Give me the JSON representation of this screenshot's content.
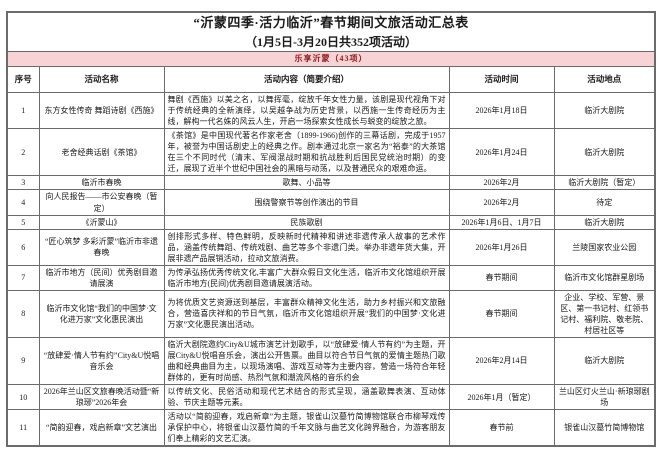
{
  "page": {
    "title_line1": "“沂蒙四季·活力临沂”春节期间文旅活动汇总表",
    "title_line2": "（1月5日-3月20日共352项活动）"
  },
  "section": {
    "label": "乐享沂蒙（43项）"
  },
  "colors": {
    "banner_bg": "#f8d3d5",
    "banner_text": "#8e1f22",
    "border": "#6b6b6b"
  },
  "table": {
    "headers": [
      "序号",
      "活动名称",
      "活动内容（简要介绍）",
      "活动时间",
      "活动地点"
    ],
    "rows": [
      {
        "no": "1",
        "name": "东方女性传奇 舞蹈诗剧《西施》",
        "content": "舞剧《西施》以美之名，以舞挥毫，绽放千年女性力量，该剧是现代视角下对于传统经典的全新演绎，以吴越争战为历史背景，以西施一生传奇经历为主线，解构一代名姝的风云人生，开启一场探索女性成长与蜕变的绽放之旅。",
        "time": "2026年1月18日",
        "place": "临沂大剧院"
      },
      {
        "no": "2",
        "name": "老舍经典话剧《茶馆》",
        "content": "《茶馆》是中国现代著名作家老舍（1899-1966)创作的三幕话剧，完成于1957年，被誉为中国话剧史上的经典之作。剧本通过北京一家名为“裕泰”的大茶馆在三个不同时代（清末、军阀混战时期和抗战胜利后国民党统治时期）的变迁，展现了近半个世纪中国社会的黑暗与动荡，以及普通民众的艰难命运。",
        "time": "2026年1月24日",
        "place": "临沂大剧院"
      },
      {
        "no": "3",
        "name": "临沂市春晚",
        "content": "歌舞、小品等",
        "time": "2026年2月",
        "place": "临沂大剧院（暂定）"
      },
      {
        "no": "4",
        "name": "向人民报告——市公安春晚（暂定）",
        "content": "围绕警察节等创作演出的节目",
        "time": "2026年2月",
        "place": "待定"
      },
      {
        "no": "5",
        "name": "《沂蒙山》",
        "content": "民族歌剧",
        "time": "2026年1月6日、1月7日",
        "place": "临沂大剧院"
      },
      {
        "no": "6",
        "name": "“匠心筑梦 多彩沂蒙”临沂市非遗春晚",
        "content": "创排形式多样、特色鲜明，反映新时代精神和讲述非遗传承人故事的艺术作品，涵盖传统舞蹈、传统戏剧、曲艺等多个非遗门类。举办非遗年货大集，开展非遗产品展销活动，拉动文旅消费。",
        "time": "2026年1月26日",
        "place": "兰陵国家农业公园"
      },
      {
        "no": "7",
        "name": "临沂市地方（民间）优秀剧目邀请展演",
        "content": "为传承弘扬优秀传统文化,丰富广大群众假日文化生活，临沂市文化馆组织开展临沂市地方(民间)优秀剧目邀请展演活动。",
        "time": "春节期间",
        "place": "临沂市文化馆群星剧场"
      },
      {
        "no": "8",
        "name": "临沂市文化馆“我们的中国梦·文化进万家”文化惠民演出",
        "content": "为将优质文艺资源送到基层，丰富群众精神文化生活，助力乡村振兴和文旅融合，营造喜庆祥和的节日气氛，临沂市文化馆组织开展“我们的中国梦·文化进万家”文化惠民演出活动。",
        "time": "春节期间",
        "place": "企业、学校、军营、景区、第一书记村、红领书记村、福利院、敬老院、村居社区等"
      },
      {
        "no": "9",
        "name": "“放肆爱·情人节有约”City&U悦唱音乐会",
        "content": "临沂大剧院邀约City&U城市演艺计划歌手，以“放肆爱·情人节有约”为主题，开展City&U悦唱音乐会，演出公开售票。曲目以符合节日气氛的爱情主题热门歌曲和经典曲目为主，以现场演唱、游戏互动等为主要内容，营造一场符合年轻群体的，更有时尚感、热烈气氛和潮流风格的音乐约会",
        "time": "2026年2月14日",
        "place": "临沂大剧院"
      },
      {
        "no": "10",
        "name": "2026年兰山区文旅春晚活动暨“新琅琊”2026年会",
        "content": "以传统文化、民俗活动和现代艺术结合的形式呈现，涵盖歌舞表演、互动体验、节庆主题等元素。",
        "time": "2026年1月（暂定）",
        "place": "兰山区灯火兰山·新琅琊剧场"
      },
      {
        "no": "11",
        "name": "“简韵迎春，戏启新章”文艺演出",
        "content": "活动以“简韵迎春，戏启新章”为主题，银雀山汉墓竹简博物馆联合市柳琴戏传承保护中心，将银雀山汉墓竹简的千年文脉与曲艺文化跨界融合，为游客朋友们奉上精彩的文艺汇演。",
        "time": "春节前",
        "place": "银雀山汉墓竹简博物馆"
      }
    ]
  }
}
